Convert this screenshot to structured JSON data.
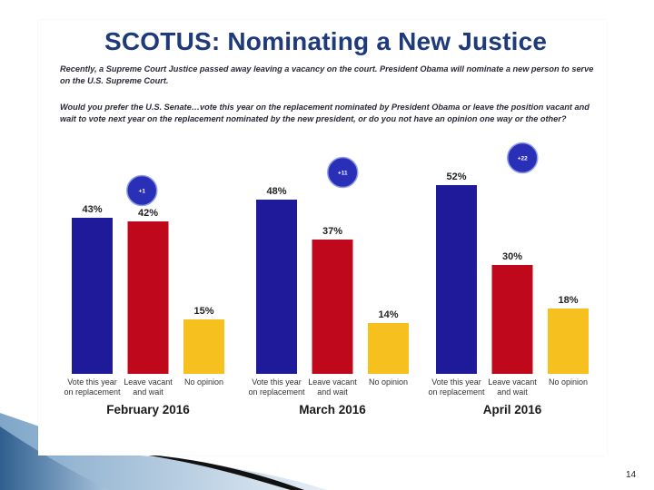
{
  "title": "SCOTUS: Nominating a New Justice",
  "intro_text": "Recently, a Supreme Court Justice passed away leaving a vacancy on the court. President Obama will nominate a new person to serve on the U.S. Supreme Court.",
  "question_text": "Would you prefer the U.S. Senate…vote this year on the replacement nominated by President Obama or leave the position vacant and wait to vote next year on the replacement nominated by the new president, or do you not have an opinion one way or the other?",
  "page_number": "14",
  "colors": {
    "vote": "#1f1a9a",
    "leave": "#c0081c",
    "none": "#f6c01e",
    "badge": "#2a2fb8",
    "title": "#1f3a7a"
  },
  "chart_data": {
    "type": "bar",
    "title": "SCOTUS: Nominating a New Justice",
    "ylim": [
      0,
      60
    ],
    "categories": [
      "Vote this year on replacement",
      "Leave vacant and wait",
      "No opinion"
    ],
    "category_labels": [
      [
        "Vote this year",
        "on replacement"
      ],
      [
        "Leave vacant",
        "and wait"
      ],
      [
        "No opinion"
      ]
    ],
    "groups": [
      {
        "period": "February 2016",
        "margin": "+1",
        "values": [
          43,
          42,
          15
        ]
      },
      {
        "period": "March 2016",
        "margin": "+11",
        "values": [
          48,
          37,
          14
        ]
      },
      {
        "period": "April 2016",
        "margin": "+22",
        "values": [
          52,
          30,
          18
        ]
      }
    ]
  }
}
